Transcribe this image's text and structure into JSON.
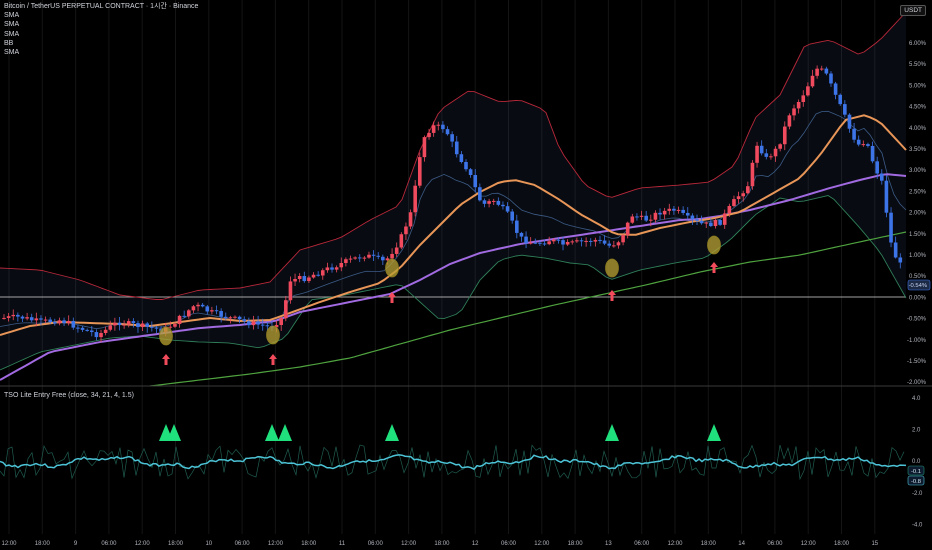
{
  "header": {
    "title": "Bitcoin / TetherUS PERPETUAL CONTRACT · 1시간 · Binance",
    "indicators": [
      "SMA",
      "SMA",
      "SMA",
      "BB",
      "SMA"
    ],
    "currency_badge": "USDT"
  },
  "price_axis": {
    "labels": [
      "6.00%",
      "5.50%",
      "5.00%",
      "4.50%",
      "4.00%",
      "3.50%",
      "3.00%",
      "2.50%",
      "2.00%",
      "1.50%",
      "1.00%",
      "0.50%",
      "0.00%",
      "-0.50%",
      "-1.00%",
      "-1.50%",
      "-2.00%"
    ],
    "current_badge": "-0.54%"
  },
  "oscillator": {
    "title": "TSO Lite Entry Free (close, 34, 21, 4, 1.5)",
    "axis_labels": [
      "4.0",
      "2.0",
      "0.0",
      "-2.0",
      "-4.0"
    ],
    "badges": [
      "-0.1",
      "-0.8"
    ]
  },
  "time_axis": {
    "labels": [
      "12:00",
      "18:00",
      "9",
      "06:00",
      "12:00",
      "18:00",
      "10",
      "06:00",
      "12:00",
      "18:00",
      "11",
      "06:00",
      "12:00",
      "18:00",
      "12",
      "06:00",
      "12:00",
      "18:00",
      "13",
      "06:00",
      "12:00",
      "18:00",
      "14",
      "06:00",
      "12:00",
      "18:00",
      "15"
    ]
  },
  "colors": {
    "background": "#000000",
    "bull_candle": "#ef4a5e",
    "bear_candle": "#3d74e8",
    "sma_fast": "#e89558",
    "sma_mid": "#a16ae0",
    "sma_slow": "#4fa33f",
    "bb_upper": "#b8283a",
    "bb_lower": "#2f7e58",
    "signal_triangle": "#1fe07c",
    "entry_arrow": "#f24b5b",
    "entry_circle": "#b9a231",
    "osc_line": "#4cc3d6"
  }
}
